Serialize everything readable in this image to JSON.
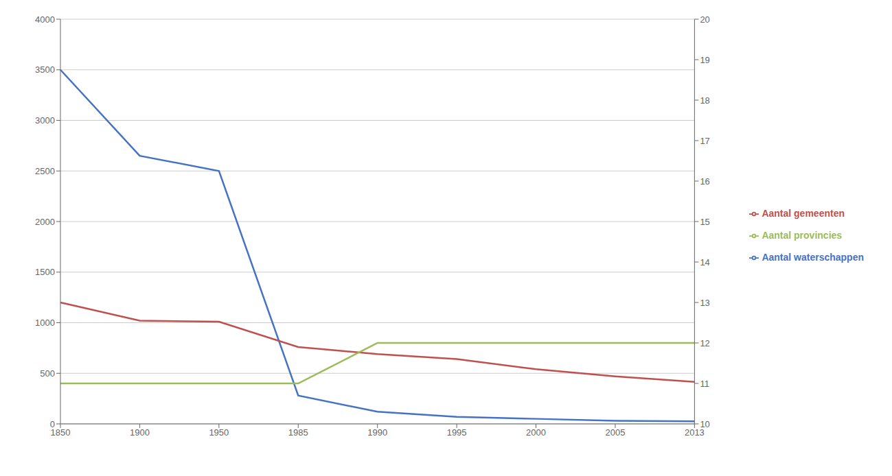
{
  "chart_data": {
    "type": "line",
    "categories": [
      "1850",
      "1900",
      "1950",
      "1985",
      "1990",
      "1995",
      "2000",
      "2005",
      "2013"
    ],
    "series": [
      {
        "name": "Aantal waterschappen",
        "color": "#4472C4",
        "values": [
          3500,
          2650,
          2500,
          280,
          120,
          70,
          50,
          30,
          25
        ]
      },
      {
        "name": "Aantal gemeenten",
        "color": "#C0504D",
        "values": [
          1200,
          1020,
          1010,
          760,
          690,
          640,
          540,
          470,
          415
        ]
      },
      {
        "name": "Aantal provincies",
        "color": "#9BBB59",
        "values": [
          11,
          11,
          11,
          11,
          12,
          12,
          12,
          12,
          12
        ],
        "axis": "y2"
      }
    ],
    "ylim": [
      0,
      4000
    ],
    "yticks": [
      0,
      500,
      1000,
      1500,
      2000,
      2500,
      3000,
      3500,
      4000
    ],
    "y2lim": [
      10,
      20
    ],
    "y2ticks": [
      10,
      11,
      12,
      13,
      14,
      15,
      16,
      17,
      18,
      19,
      20
    ],
    "grid": true,
    "legend": "right"
  }
}
